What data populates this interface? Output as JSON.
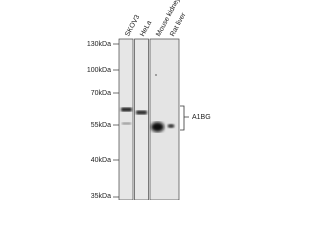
{
  "lanes": [
    "SKOV3",
    "HeLa",
    "Mouse kidney",
    "Rat liver"
  ],
  "markers": [
    "130kDa",
    "100kDa",
    "70kDa",
    "55kDa",
    "40kDa",
    "35kDa"
  ],
  "target": "A1BG"
}
